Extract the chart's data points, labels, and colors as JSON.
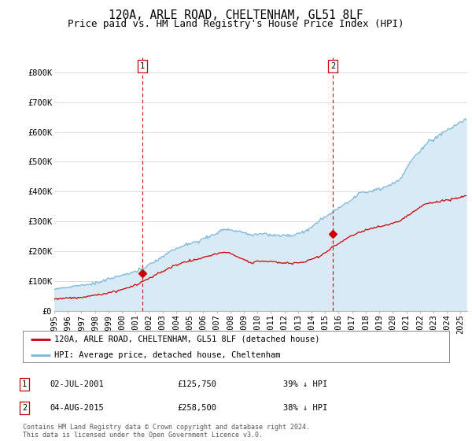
{
  "title": "120A, ARLE ROAD, CHELTENHAM, GL51 8LF",
  "subtitle": "Price paid vs. HM Land Registry's House Price Index (HPI)",
  "ylim": [
    0,
    850000
  ],
  "yticks": [
    0,
    100000,
    200000,
    300000,
    400000,
    500000,
    600000,
    700000,
    800000
  ],
  "ytick_labels": [
    "£0",
    "£100K",
    "£200K",
    "£300K",
    "£400K",
    "£500K",
    "£600K",
    "£700K",
    "£800K"
  ],
  "hpi_color": "#7ab8d9",
  "hpi_fill_color": "#d8eaf5",
  "price_color": "#cc0000",
  "vline_color": "#cc0000",
  "background_color": "#ffffff",
  "grid_color": "#dddddd",
  "transaction_1": {
    "date": "02-JUL-2001",
    "price": 125750,
    "label": "1",
    "pct": "39% ↓ HPI"
  },
  "transaction_2": {
    "date": "04-AUG-2015",
    "price": 258500,
    "label": "2",
    "pct": "38% ↓ HPI"
  },
  "footer": "Contains HM Land Registry data © Crown copyright and database right 2024.\nThis data is licensed under the Open Government Licence v3.0.",
  "legend_line1": "120A, ARLE ROAD, CHELTENHAM, GL51 8LF (detached house)",
  "legend_line2": "HPI: Average price, detached house, Cheltenham",
  "title_fontsize": 10.5,
  "subtitle_fontsize": 9,
  "tick_fontsize": 7.5
}
